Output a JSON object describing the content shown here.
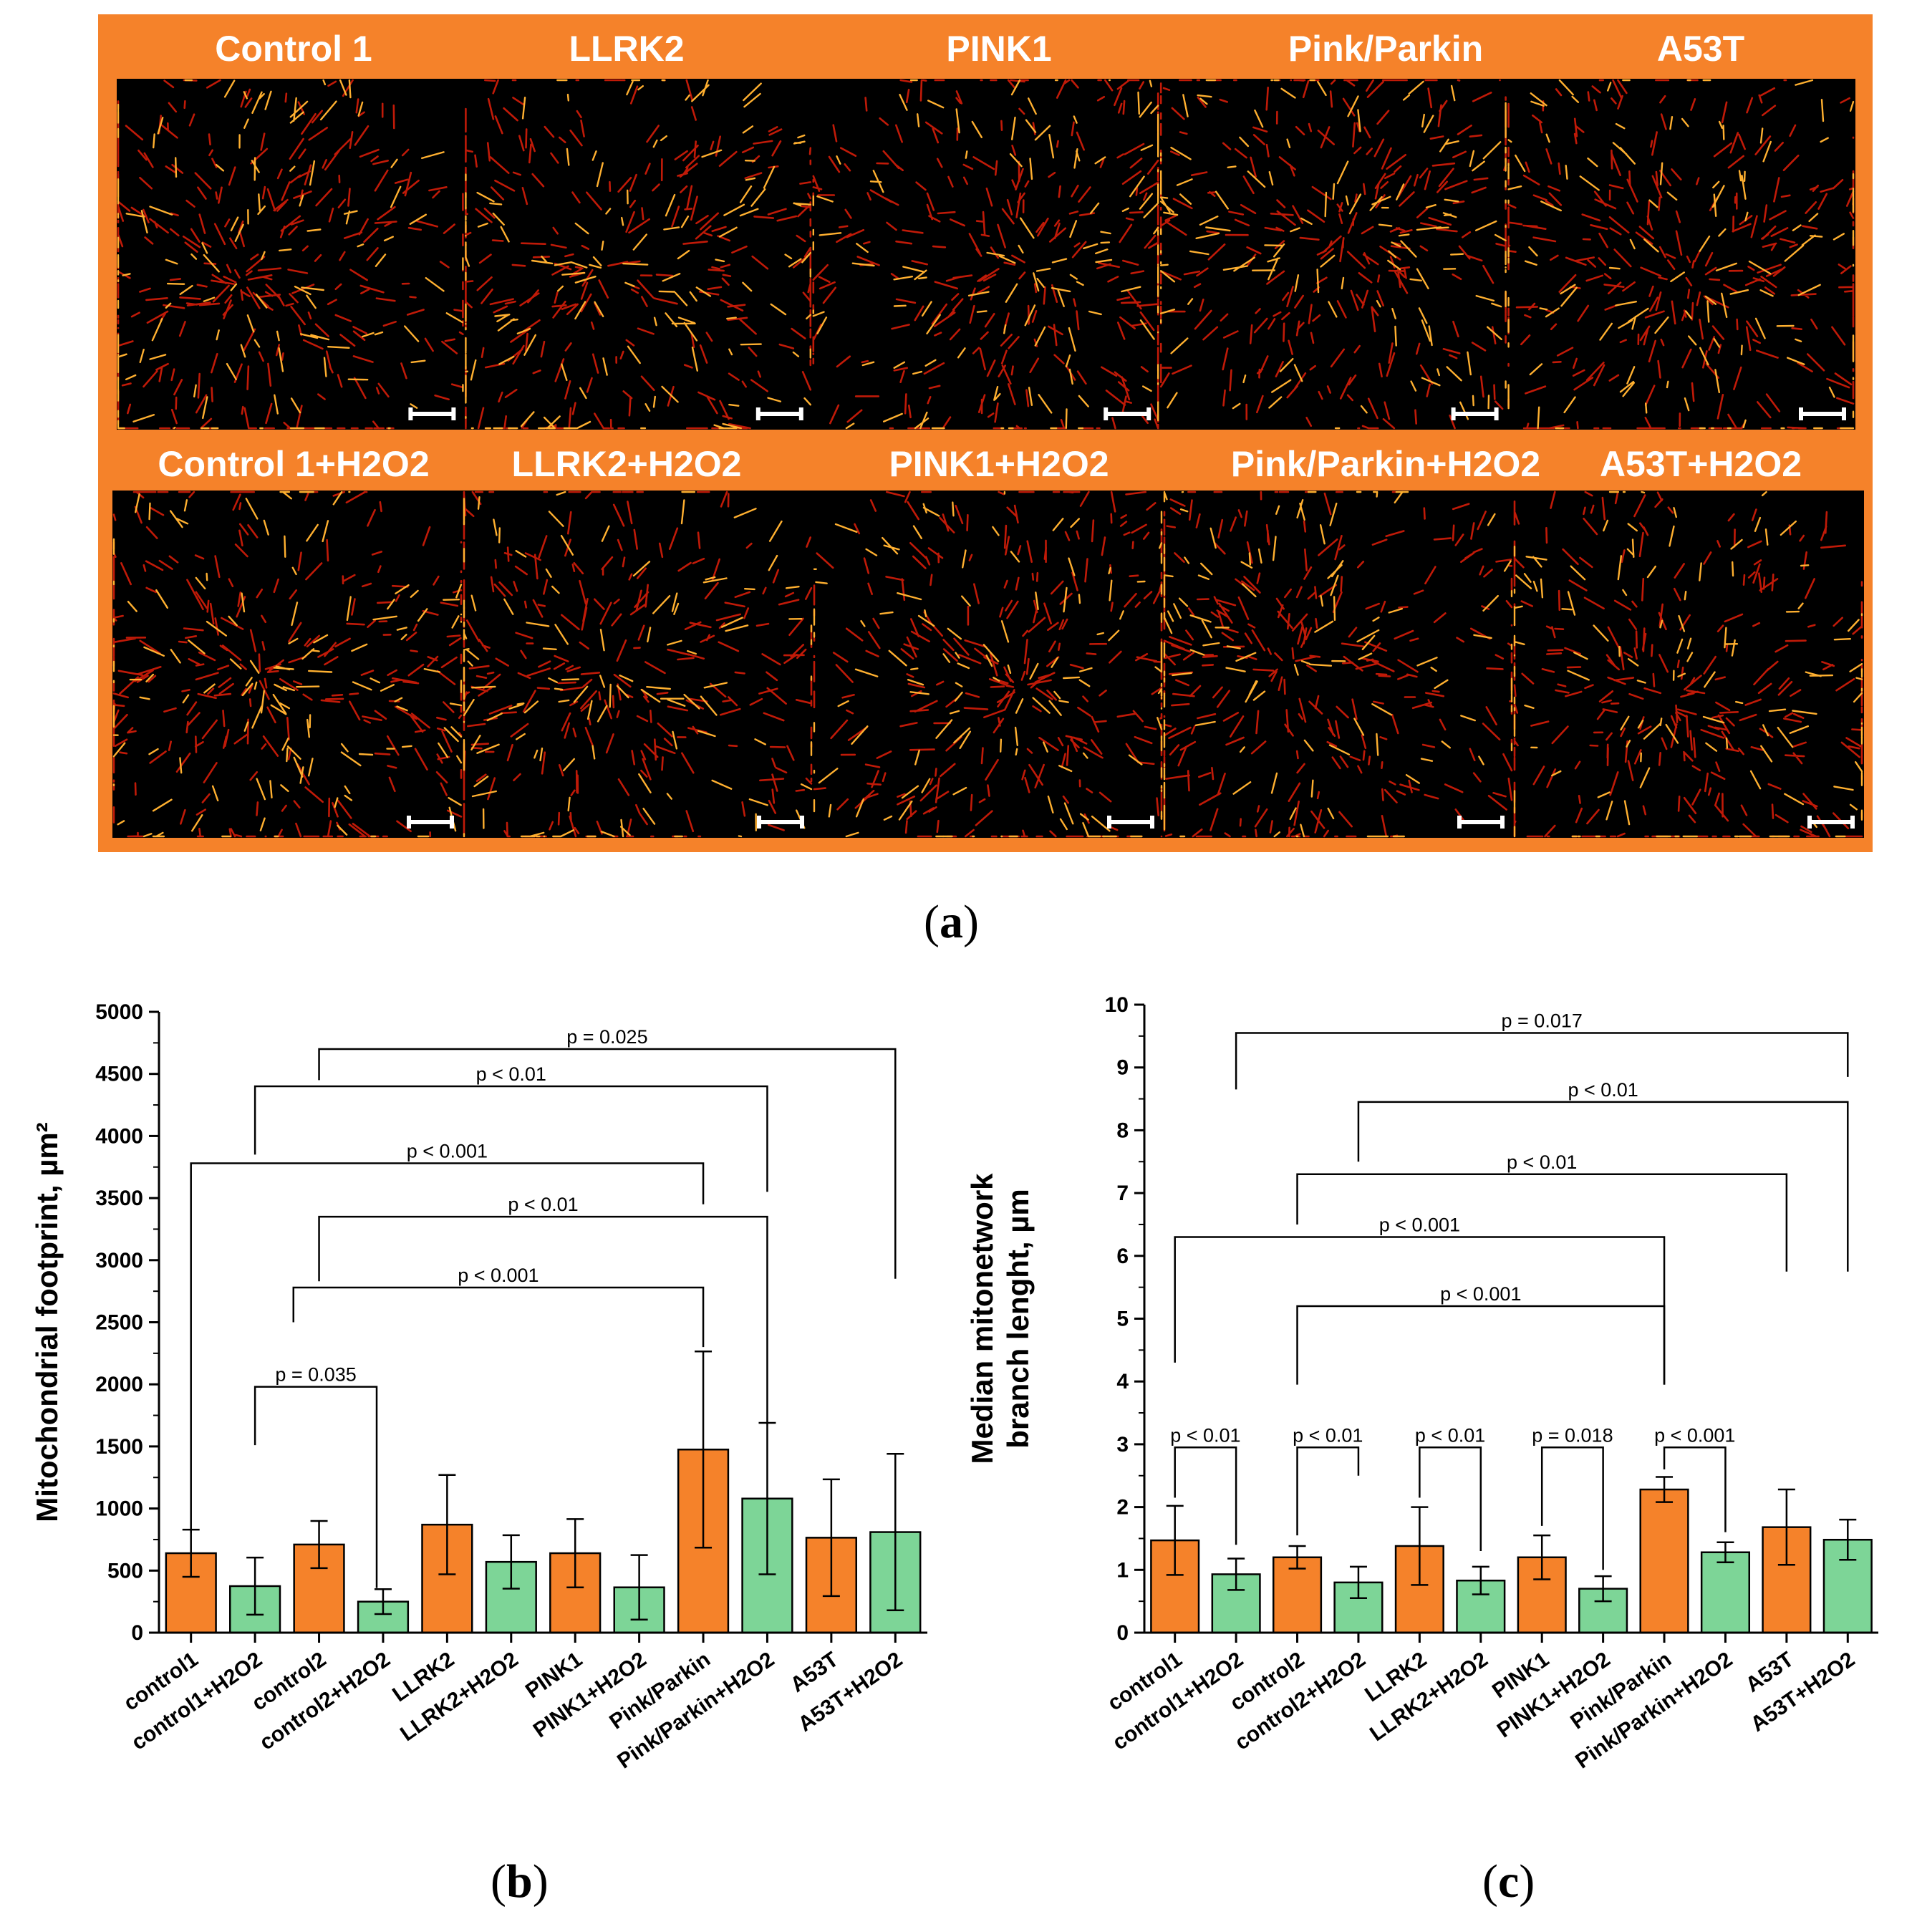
{
  "panel_a": {
    "titles": [
      [
        "Control 1",
        "LLRK2",
        "PINK1",
        "Pink/Parkin",
        "A53T"
      ],
      [
        "Control 1+H2O2",
        "LLRK2+H2O2",
        "PINK1+H2O2",
        "Pink/Parkin+H2O2",
        "A53T+H2O2"
      ]
    ],
    "colors": {
      "frame": "#f5822a",
      "image_bg": "#000000",
      "mito_dim": "#c01a08",
      "mito_bright": "#ffb030"
    }
  },
  "labels": {
    "a": "a",
    "b": "b",
    "c": "c"
  },
  "chart_data": [
    {
      "type": "bar",
      "id": "b",
      "categories": [
        "control1",
        "control1+H2O2",
        "control2",
        "control2+H2O2",
        "LLRK2",
        "LLRK2+H2O2",
        "PINK1",
        "PINK1+H2O2",
        "Pink/Parkin",
        "Pink/Parkin+H2O2",
        "A53T",
        "A53T+H2O2"
      ],
      "values": [
        640,
        375,
        710,
        250,
        870,
        570,
        640,
        365,
        1475,
        1080,
        765,
        810
      ],
      "errors": [
        190,
        230,
        190,
        100,
        400,
        215,
        275,
        260,
        790,
        610,
        470,
        630
      ],
      "bar_colors": [
        "#f5822a",
        "#7dd597",
        "#f5822a",
        "#7dd597",
        "#f5822a",
        "#7dd597",
        "#f5822a",
        "#7dd597",
        "#f5822a",
        "#7dd597",
        "#f5822a",
        "#7dd597"
      ],
      "ylabel": "Mitochondrial footprint, µm²",
      "ylim": [
        0,
        5000
      ],
      "yticks": [
        0,
        500,
        1000,
        1500,
        2000,
        2500,
        3000,
        3500,
        4000,
        4500,
        5000
      ],
      "annotations": [
        {
          "text": "p = 0.025",
          "from": 2,
          "to": 11,
          "y": 4700,
          "from_end": 4450,
          "to_end": 2850
        },
        {
          "text": "p < 0.01",
          "from": 1,
          "to": 9,
          "y": 4400,
          "from_end": 3850,
          "to_end": 3550
        },
        {
          "text": "p < 0.001",
          "from": 0,
          "to": 8,
          "y": 3780,
          "from_end": 800,
          "to_end": 3450
        },
        {
          "text": "p < 0.01",
          "from": 2,
          "to": 9,
          "y": 3350,
          "from_end": 2830,
          "to_end": 1680
        },
        {
          "text": "p < 0.001",
          "from": 1.6,
          "to": 8,
          "y": 2780,
          "from_end": 2500,
          "to_end": 2300
        },
        {
          "text": "p = 0.035",
          "from": 1,
          "to": 2.9,
          "y": 1980,
          "from_end": 1510,
          "to_end": 360
        }
      ]
    },
    {
      "type": "bar",
      "id": "c",
      "categories": [
        "control1",
        "control1+H2O2",
        "control2",
        "control2+H2O2",
        "LLRK2",
        "LLRK2+H2O2",
        "PINK1",
        "PINK1+H2O2",
        "Pink/Parkin",
        "Pink/Parkin+H2O2",
        "A53T",
        "A53T+H2O2"
      ],
      "values": [
        1.47,
        0.93,
        1.2,
        0.8,
        1.38,
        0.83,
        1.2,
        0.7,
        2.28,
        1.28,
        1.68,
        1.48
      ],
      "errors": [
        0.55,
        0.25,
        0.18,
        0.25,
        0.62,
        0.22,
        0.35,
        0.2,
        0.2,
        0.16,
        0.6,
        0.32
      ],
      "bar_colors": [
        "#f5822a",
        "#7dd597",
        "#f5822a",
        "#7dd597",
        "#f5822a",
        "#7dd597",
        "#f5822a",
        "#7dd597",
        "#f5822a",
        "#7dd597",
        "#f5822a",
        "#7dd597"
      ],
      "ylabel_lines": [
        "Median mitonetwork",
        "branch lenght, µm"
      ],
      "ylim": [
        0,
        10
      ],
      "yticks": [
        0,
        1,
        2,
        3,
        4,
        5,
        6,
        7,
        8,
        9,
        10
      ],
      "annotations": [
        {
          "text": "p = 0.017",
          "from": 1,
          "to": 11,
          "y": 9.55,
          "from_end": 8.65,
          "to_end": 8.85
        },
        {
          "text": "p < 0.01",
          "from": 3,
          "to": 11,
          "y": 8.45,
          "from_end": 7.5,
          "to_end": 5.75
        },
        {
          "text": "p < 0.01",
          "from": 2,
          "to": 10,
          "y": 7.3,
          "from_end": 6.5,
          "to_end": 5.75
        },
        {
          "text": "p < 0.001",
          "from": 0,
          "to": 8,
          "y": 6.3,
          "from_end": 4.3,
          "to_end": 3.95
        },
        {
          "text": "p < 0.001",
          "from": 2,
          "to": 8,
          "y": 5.2,
          "from_end": 3.95,
          "to_end": 3.95
        },
        {
          "text": "p < 0.01",
          "from": 0,
          "to": 1,
          "y": 2.95,
          "from_end": 2.15,
          "to_end": 1.4
        },
        {
          "text": "p < 0.01",
          "from": 2,
          "to": 3,
          "y": 2.95,
          "from_end": 1.55,
          "to_end": 2.5
        },
        {
          "text": "p < 0.01",
          "from": 4,
          "to": 5,
          "y": 2.95,
          "from_end": 2.15,
          "to_end": 1.3
        },
        {
          "text": "p = 0.018",
          "from": 6,
          "to": 7,
          "y": 2.95,
          "from_end": 1.7,
          "to_end": 1.0
        },
        {
          "text": "p < 0.001",
          "from": 8,
          "to": 9,
          "y": 2.95,
          "from_end": 2.6,
          "to_end": 1.6
        }
      ]
    }
  ]
}
